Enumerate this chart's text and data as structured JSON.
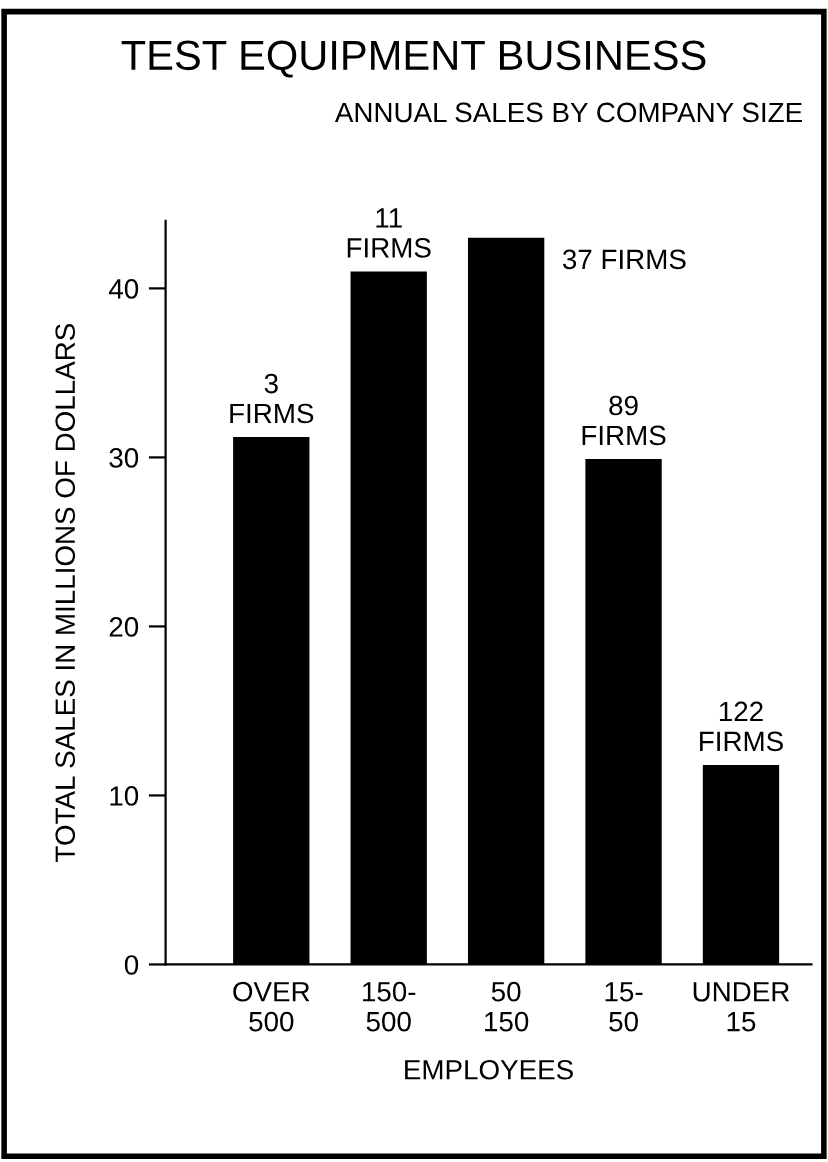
{
  "chart_data": {
    "type": "bar",
    "title": "TEST EQUIPMENT BUSINESS",
    "subtitle": "ANNUAL SALES BY COMPANY SIZE",
    "xlabel": "EMPLOYEES",
    "ylabel": "TOTAL SALES IN MILLIONS OF DOLLARS",
    "categories": [
      "OVER\n500",
      "150-\n500",
      "50\n150",
      "15-\n50",
      "UNDER\n15"
    ],
    "values": [
      31.2,
      41.0,
      43.0,
      29.9,
      11.8
    ],
    "color": "#000000",
    "ylim": [
      0,
      44
    ],
    "yticks": [
      0,
      10,
      20,
      30,
      40
    ],
    "grid": false,
    "annotations": [
      {
        "text": "3\nFIRMS",
        "x": "OVER\n500",
        "y": 31.2
      },
      {
        "text": "11\nFIRMS",
        "x": "150-\n500",
        "y": 41.0
      },
      {
        "text": "37 FIRMS",
        "x": "50\n150",
        "y": 43.0
      },
      {
        "text": "89\nFIRMS",
        "x": "15-\n50",
        "y": 29.9
      },
      {
        "text": "122\nFIRMS",
        "x": "UNDER\n15",
        "y": 11.8
      }
    ]
  }
}
